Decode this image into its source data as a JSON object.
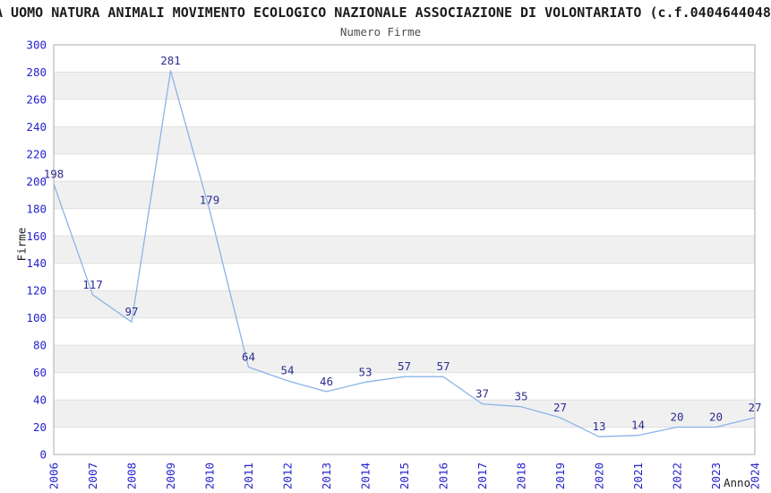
{
  "header": {
    "title": "A UOMO NATURA ANIMALI MOVIMENTO ECOLOGICO NAZIONALE ASSOCIAZIONE DI VOLONTARIATO (c.f.0404644048",
    "subtitle": "Numero Firme"
  },
  "chart_data": {
    "type": "line",
    "title": "Numero Firme",
    "xlabel": "Anno",
    "ylabel": "Firme",
    "categories": [
      "2006",
      "2007",
      "2008",
      "2009",
      "2010",
      "2011",
      "2012",
      "2013",
      "2014",
      "2015",
      "2016",
      "2017",
      "2018",
      "2019",
      "2020",
      "2021",
      "2022",
      "2023",
      "2024"
    ],
    "values": [
      198,
      117,
      97,
      281,
      179,
      64,
      54,
      46,
      53,
      57,
      57,
      37,
      35,
      27,
      13,
      14,
      20,
      20,
      27
    ],
    "ylim": [
      0,
      300
    ],
    "ytick_step": 20,
    "grid": "horizontal-bands-alternating",
    "legend": "none",
    "x_tick_rotation_deg": -90,
    "point_labels_shown": true
  },
  "colors": {
    "line": "#8ab4e8",
    "band": "#f0f0f0",
    "gridline": "#e0e0e0",
    "border": "#ababab",
    "tick_label": "#2323cc",
    "point_label": "#2d2d8f",
    "title": "#1c1c1c",
    "subtitle": "#4f4f4f",
    "background": "#ffffff"
  }
}
